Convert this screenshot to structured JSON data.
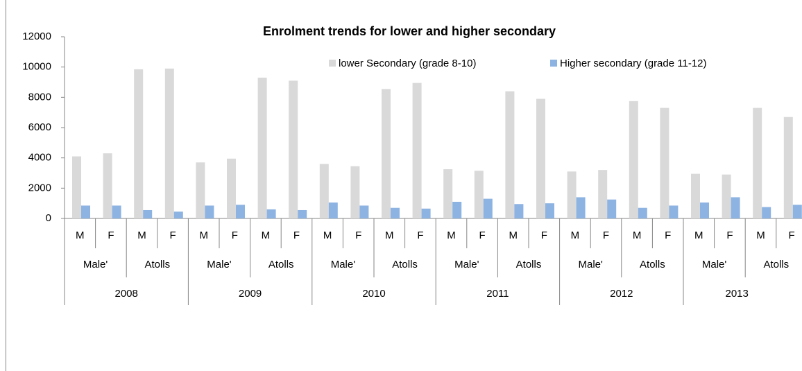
{
  "chart_data": {
    "type": "bar",
    "title": "Enrolment trends for lower and higher secondary",
    "categories": [
      "M",
      "F",
      "M",
      "F",
      "M",
      "F",
      "M",
      "F",
      "M",
      "F",
      "M",
      "F",
      "M",
      "F",
      "M",
      "F",
      "M",
      "F",
      "M",
      "F",
      "M",
      "F",
      "M",
      "F"
    ],
    "groups": [
      "Male'",
      "Atolls",
      "Male'",
      "Atolls",
      "Male'",
      "Atolls",
      "Male'",
      "Atolls",
      "Male'",
      "Atolls",
      "Male'",
      "Atolls"
    ],
    "years": [
      "2008",
      "2009",
      "2010",
      "2011",
      "2012",
      "2013"
    ],
    "series": [
      {
        "name": "lower Secondary (grade 8-10)",
        "color": "#d9d9d9",
        "values": [
          4100,
          4300,
          9850,
          9900,
          3700,
          3950,
          9300,
          9100,
          3600,
          3450,
          8550,
          8950,
          3250,
          3150,
          8400,
          7900,
          3100,
          3200,
          7750,
          7300,
          2950,
          2900,
          7300,
          6700
        ]
      },
      {
        "name": "Higher secondary (grade 11-12)",
        "color": "#8db3e2",
        "values": [
          850,
          850,
          550,
          450,
          850,
          900,
          600,
          550,
          1050,
          850,
          700,
          650,
          1100,
          1300,
          950,
          1000,
          1400,
          1250,
          700,
          850,
          1050,
          1400,
          750,
          900
        ]
      }
    ],
    "ylim": [
      0,
      12000
    ],
    "yticks": [
      0,
      2000,
      4000,
      6000,
      8000,
      10000,
      12000
    ],
    "grid": false
  }
}
